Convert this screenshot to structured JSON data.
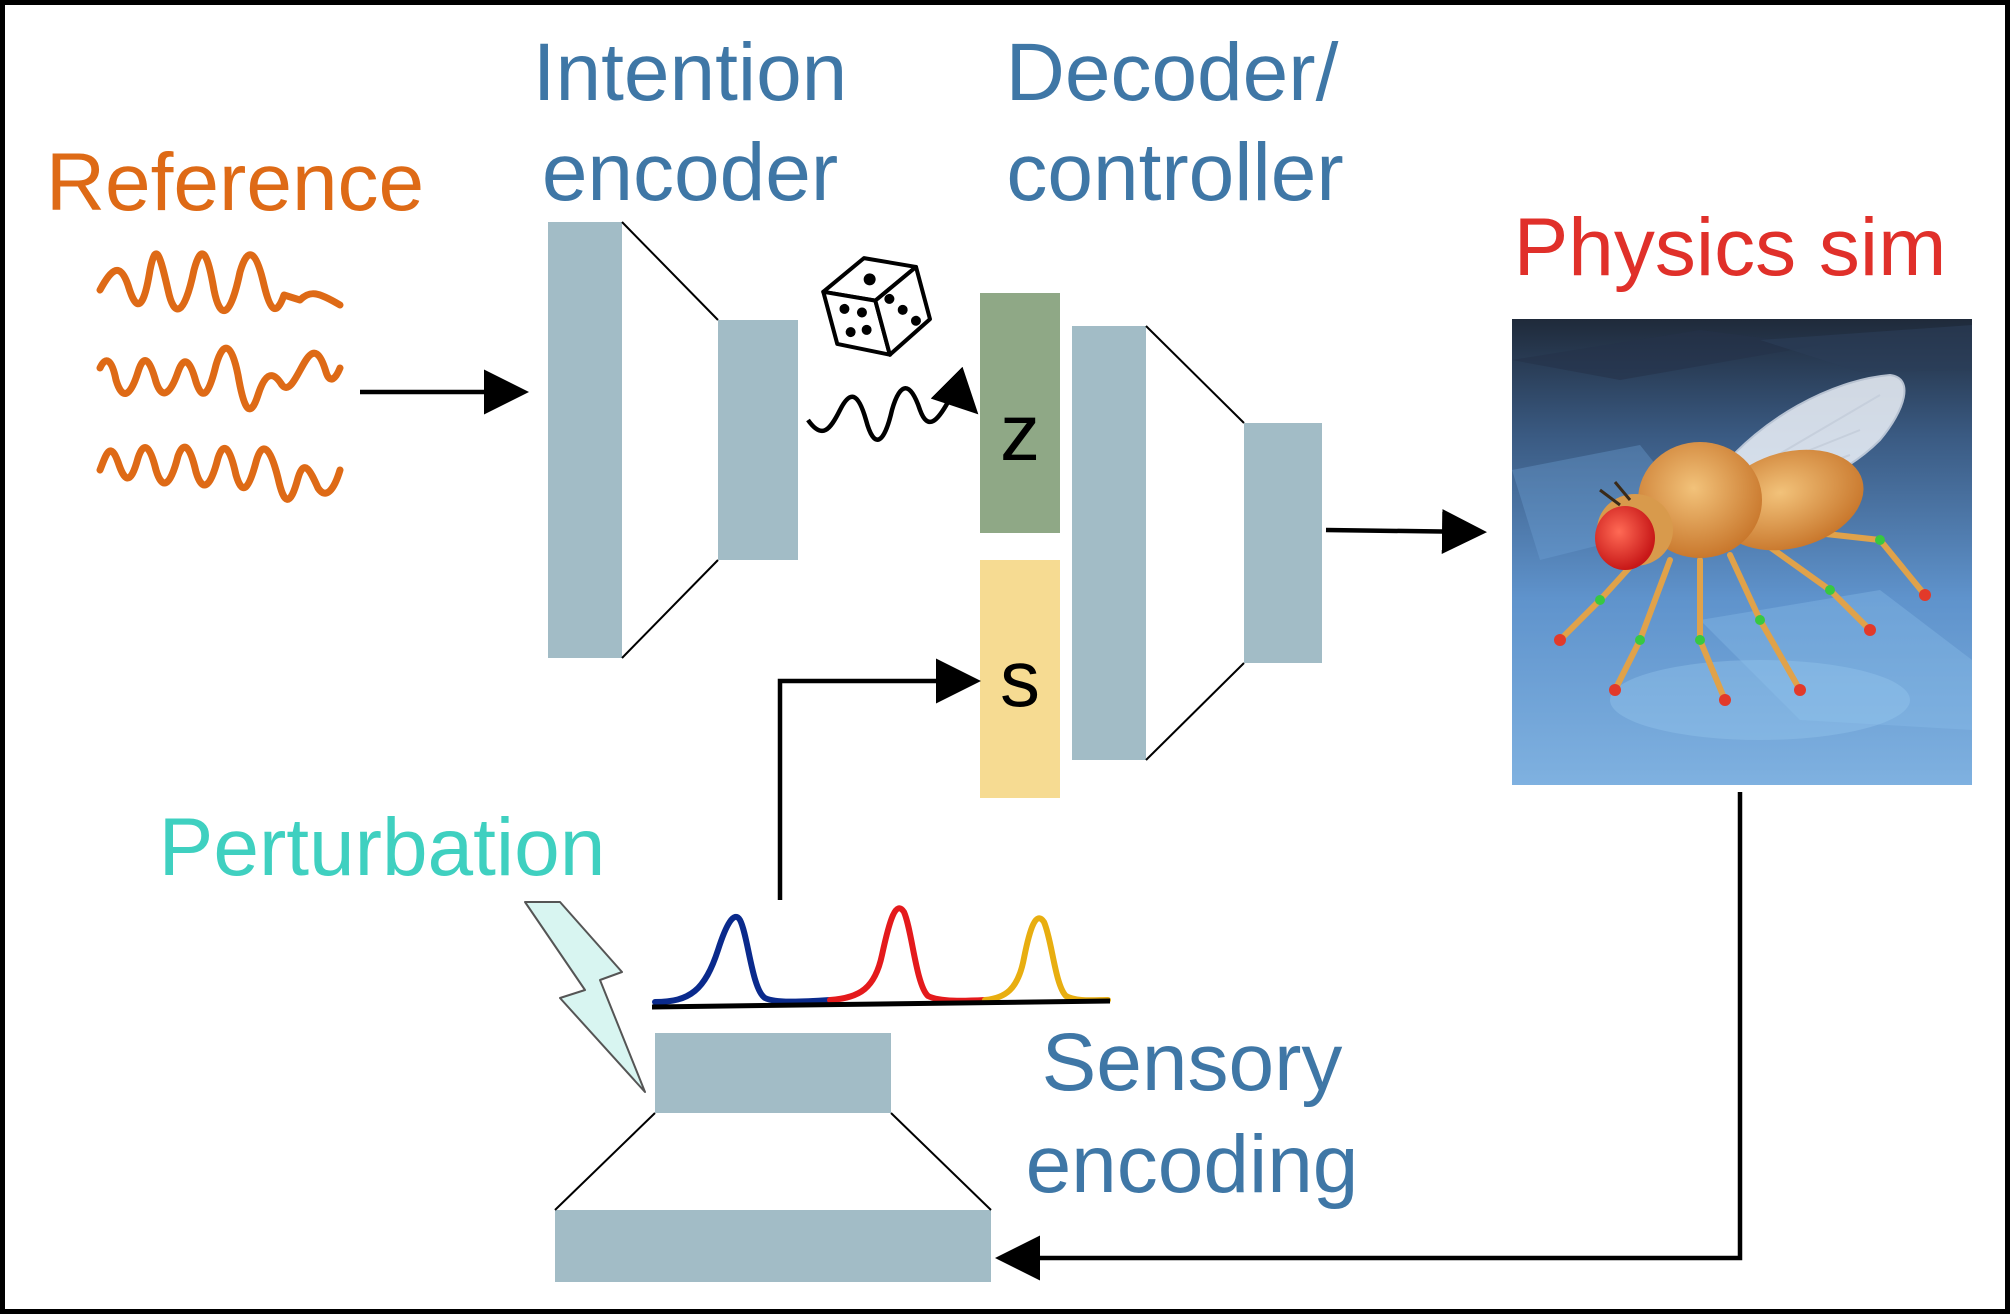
{
  "labels": {
    "reference": "Reference",
    "intention_line1": "Intention",
    "intention_line2": "encoder",
    "decoder_line1": "Decoder/",
    "decoder_line2": "controller",
    "physics": "Physics sim",
    "perturbation": "Perturbation",
    "sensory_line1": "Sensory",
    "sensory_line2": "encoding",
    "z": "z",
    "s": "s"
  },
  "colors": {
    "reference": "#de6a16",
    "blue_label": "#3f77a6",
    "physics": "#e0302a",
    "perturbation": "#3fd0c0",
    "block": "#a2bcc6",
    "z_block": "#8fa886",
    "s_block": "#f6db92",
    "peak_blue": "#0a2a8c",
    "peak_red": "#e41a1c",
    "peak_yellow": "#e8ae10"
  },
  "icons": {
    "dice": "dice-icon",
    "fly": "fly-image",
    "lightning": "lightning-icon"
  }
}
